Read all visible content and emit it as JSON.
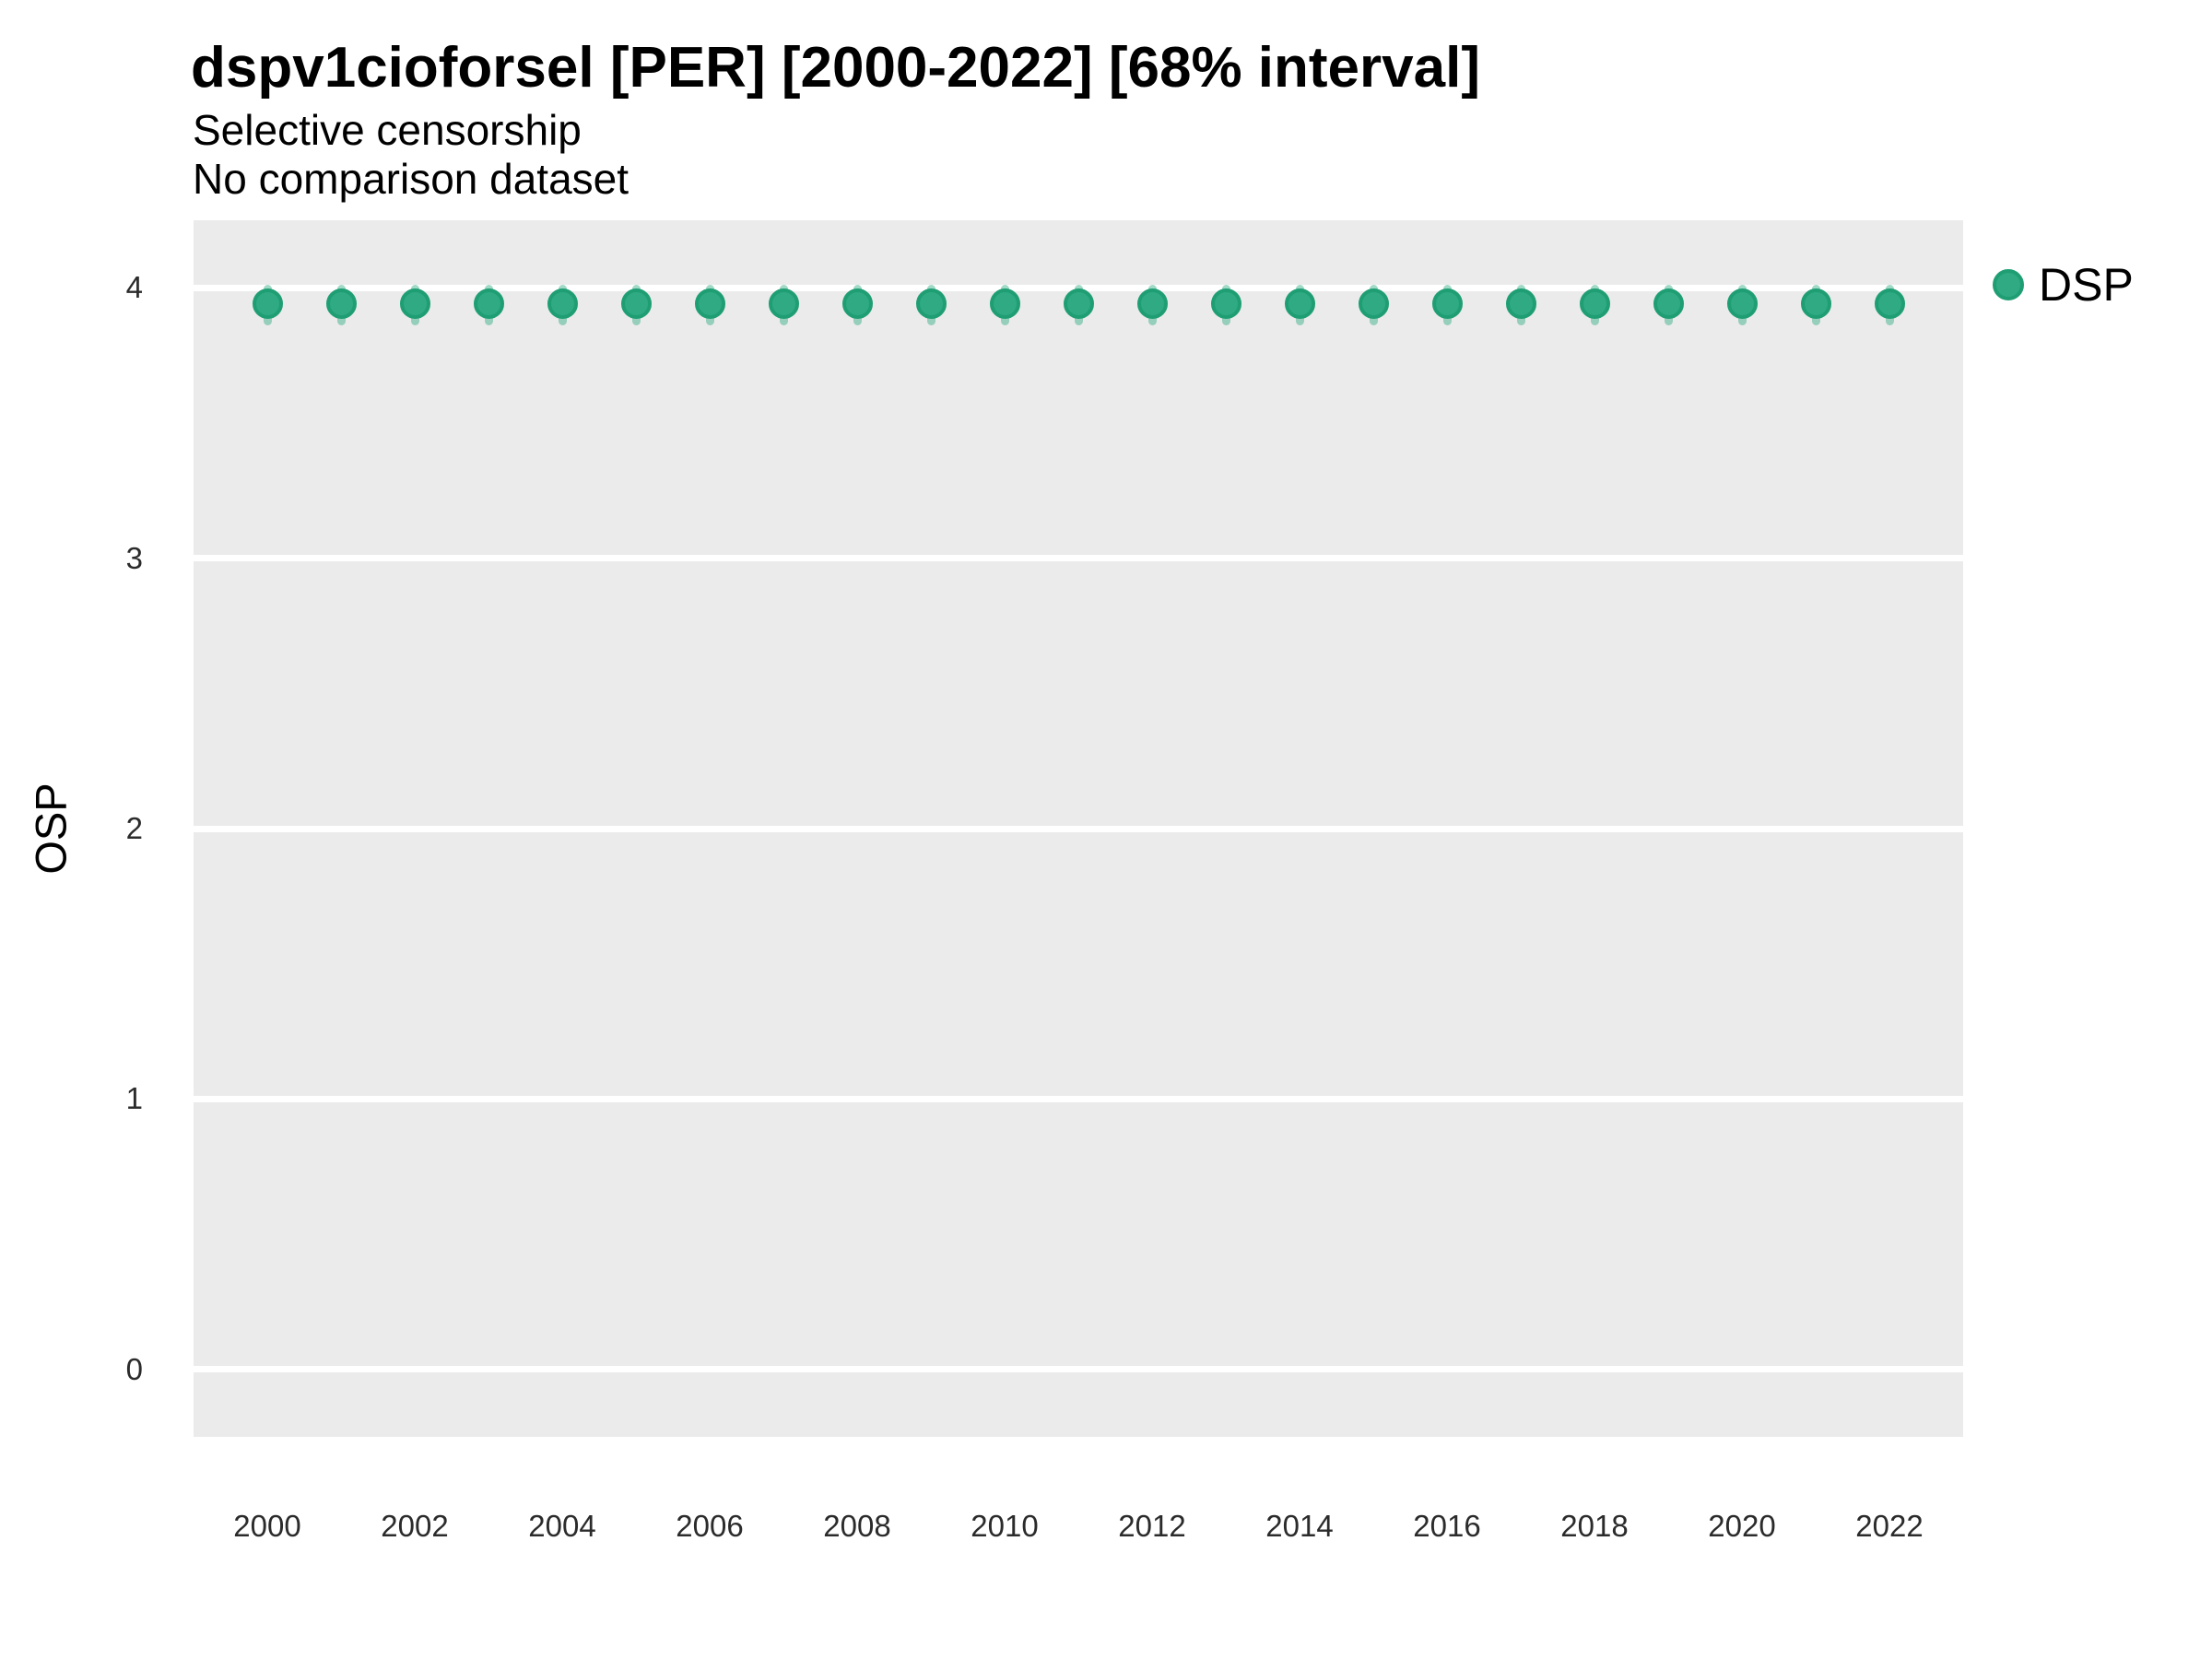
{
  "chart_data": {
    "type": "scatter",
    "title": "dspv1cioforsel [PER] [2000-2022] [68% interval]",
    "subtitle": "Selective censorship",
    "subtitle2": "No comparison dataset",
    "xlabel": "",
    "ylabel": "OSP",
    "interval_label": "68% interval",
    "x": [
      2000,
      2001,
      2002,
      2003,
      2004,
      2005,
      2006,
      2007,
      2008,
      2009,
      2010,
      2011,
      2012,
      2013,
      2014,
      2015,
      2016,
      2017,
      2018,
      2019,
      2020,
      2021,
      2022
    ],
    "series": [
      {
        "name": "DSP",
        "color": "#2FAA83",
        "stroke_color": "#1F9E74",
        "values": [
          3.94,
          3.94,
          3.94,
          3.94,
          3.94,
          3.94,
          3.94,
          3.94,
          3.94,
          3.94,
          3.94,
          3.94,
          3.94,
          3.94,
          3.94,
          3.94,
          3.94,
          3.94,
          3.94,
          3.94,
          3.94,
          3.94,
          3.94
        ],
        "lower": [
          3.86,
          3.86,
          3.86,
          3.86,
          3.86,
          3.86,
          3.86,
          3.86,
          3.86,
          3.86,
          3.86,
          3.86,
          3.86,
          3.86,
          3.86,
          3.86,
          3.86,
          3.86,
          3.86,
          3.86,
          3.86,
          3.86,
          3.86
        ],
        "upper": [
          4.01,
          4.01,
          4.01,
          4.01,
          4.01,
          4.01,
          4.01,
          4.01,
          4.01,
          4.01,
          4.01,
          4.01,
          4.01,
          4.01,
          4.01,
          4.01,
          4.01,
          4.01,
          4.01,
          4.01,
          4.01,
          4.01,
          4.01
        ]
      }
    ],
    "xticks": [
      2000,
      2002,
      2004,
      2006,
      2008,
      2010,
      2012,
      2014,
      2016,
      2018,
      2020,
      2022
    ],
    "yticks": [
      0,
      1,
      2,
      3,
      4
    ],
    "xlim": [
      1999,
      2023
    ],
    "ylim": [
      -0.25,
      4.25
    ],
    "grid": "horizontal-major-only",
    "legend": {
      "position": "right-top",
      "entries": [
        "DSP"
      ]
    },
    "panel_bg": "#EBEBEB",
    "gridline_color": "#FFFFFF",
    "errorbar_color": "rgba(47,170,131,0.45)"
  }
}
